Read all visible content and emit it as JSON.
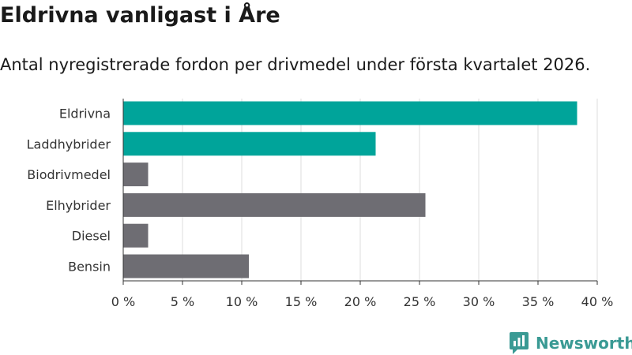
{
  "header": {
    "title": "Eldrivna vanligast i Åre",
    "subtitle": "Antal nyregistrerade fordon per drivmedel under första kvartalet 2026."
  },
  "branding": {
    "name": "Newsworthy"
  },
  "colors": {
    "highlight": "#00a49a",
    "default": "#6e6d73",
    "grid": "#dddddd",
    "brand": "#3a9a94"
  },
  "chart_data": {
    "type": "bar",
    "orientation": "horizontal",
    "title": "Eldrivna vanligast i Åre",
    "subtitle": "Antal nyregistrerade fordon per drivmedel under första kvartalet 2026.",
    "xlabel": "",
    "ylabel": "",
    "categories": [
      "Eldrivna",
      "Laddhybrider",
      "Biodrivmedel",
      "Elhybrider",
      "Diesel",
      "Bensin"
    ],
    "values": [
      38.3,
      21.3,
      2.1,
      25.5,
      2.1,
      10.6
    ],
    "highlighted": [
      true,
      true,
      false,
      false,
      false,
      false
    ],
    "xlim": [
      0,
      40
    ],
    "ticks": [
      0,
      5,
      10,
      15,
      20,
      25,
      30,
      35,
      40
    ],
    "tick_labels": [
      "0 %",
      "5 %",
      "10 %",
      "15 %",
      "20 %",
      "25 %",
      "30 %",
      "35 %",
      "40 %"
    ],
    "grid": true
  }
}
